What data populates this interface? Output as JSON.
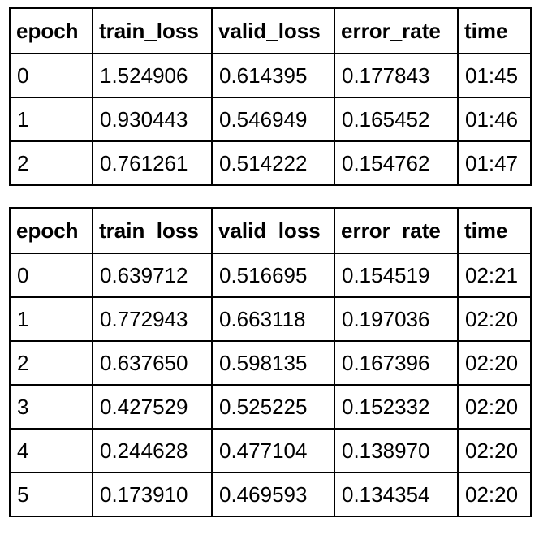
{
  "tables": [
    {
      "headers": [
        "epoch",
        "train_loss",
        "valid_loss",
        "error_rate",
        "time"
      ],
      "rows": [
        [
          "0",
          "1.524906",
          "0.614395",
          "0.177843",
          "01:45"
        ],
        [
          "1",
          "0.930443",
          "0.546949",
          "0.165452",
          "01:46"
        ],
        [
          "2",
          "0.761261",
          "0.514222",
          "0.154762",
          "01:47"
        ]
      ]
    },
    {
      "headers": [
        "epoch",
        "train_loss",
        "valid_loss",
        "error_rate",
        "time"
      ],
      "rows": [
        [
          "0",
          "0.639712",
          "0.516695",
          "0.154519",
          "02:21"
        ],
        [
          "1",
          "0.772943",
          "0.663118",
          "0.197036",
          "02:20"
        ],
        [
          "2",
          "0.637650",
          "0.598135",
          "0.167396",
          "02:20"
        ],
        [
          "3",
          "0.427529",
          "0.525225",
          "0.152332",
          "02:20"
        ],
        [
          "4",
          "0.244628",
          "0.477104",
          "0.138970",
          "02:20"
        ],
        [
          "5",
          "0.173910",
          "0.469593",
          "0.134354",
          "02:20"
        ]
      ]
    }
  ]
}
